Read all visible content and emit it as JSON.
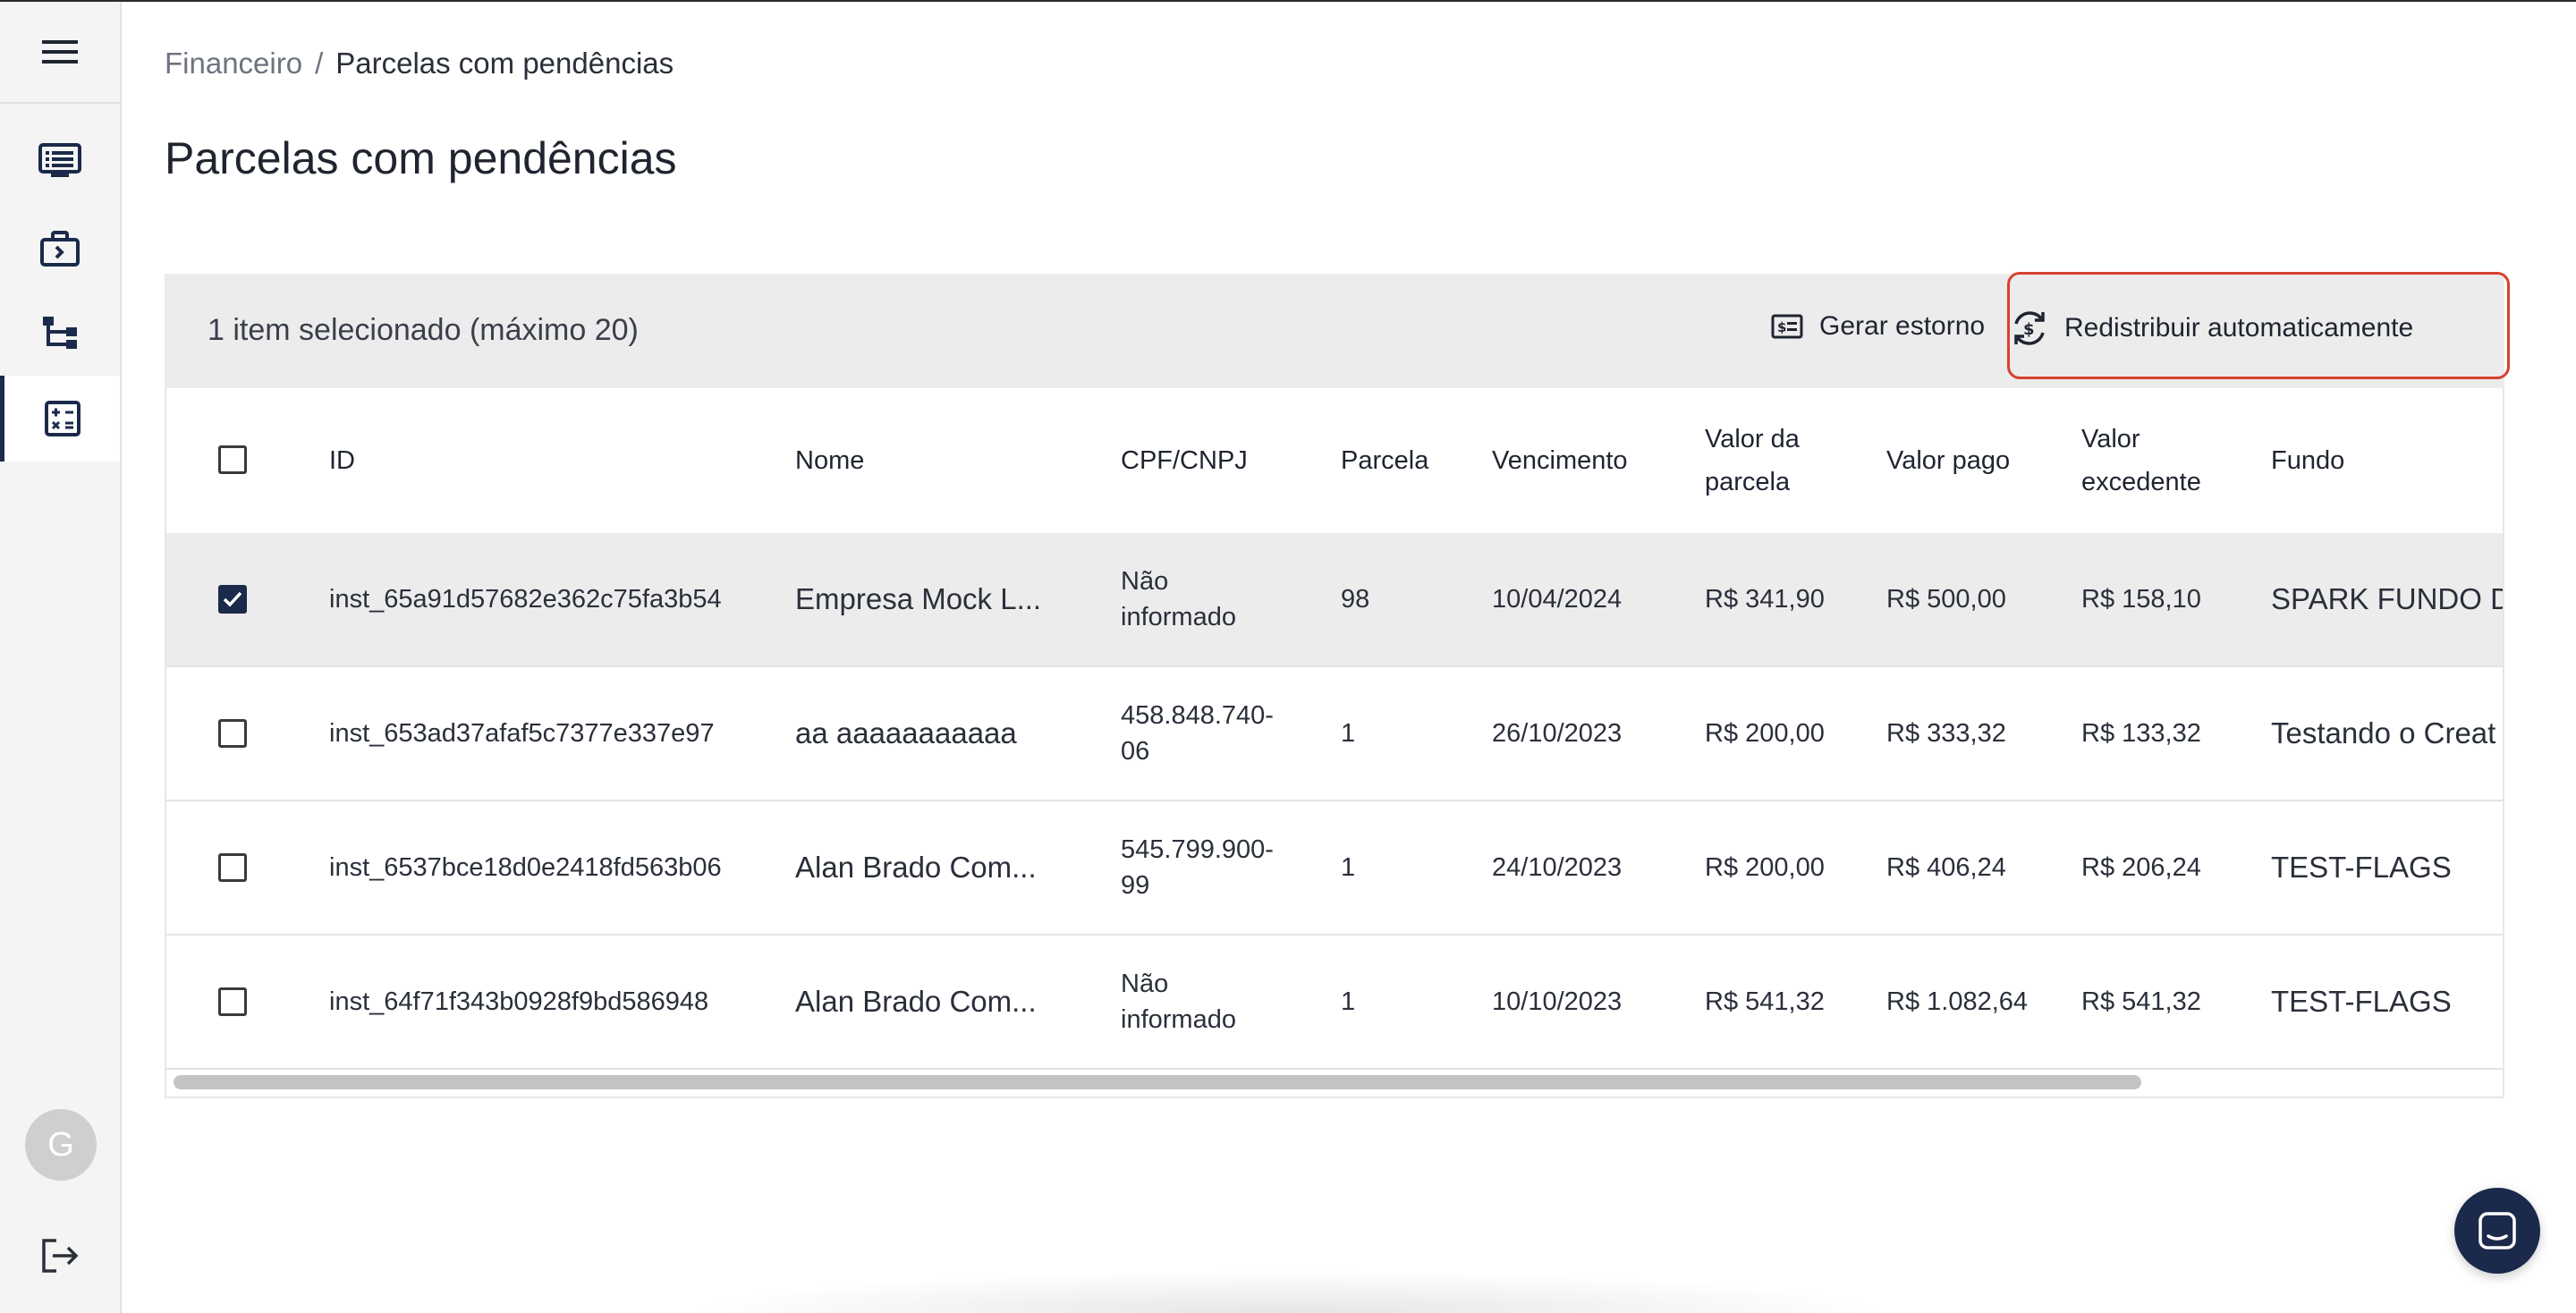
{
  "breadcrumb": {
    "parent": "Financeiro",
    "separator": "/",
    "current": "Parcelas com pendências"
  },
  "page": {
    "title": "Parcelas com pendências"
  },
  "sidebar": {
    "avatar_initial": "G",
    "items": [
      {
        "icon": "list-card-icon"
      },
      {
        "icon": "briefcase-icon"
      },
      {
        "icon": "hierarchy-icon"
      },
      {
        "icon": "calculator-icon",
        "active": true
      }
    ]
  },
  "toolbar": {
    "selection_text": "1 item selecionado (máximo 20)",
    "refund_label": "Gerar estorno",
    "redistribute_label": "Redistribuir automaticamente"
  },
  "table": {
    "headers": {
      "id": "ID",
      "nome": "Nome",
      "cpf": "CPF/CNPJ",
      "parcela": "Parcela",
      "vencimento": "Vencimento",
      "valor_parcela_1": "Valor da",
      "valor_parcela_2": "parcela",
      "valor_pago": "Valor pago",
      "valor_excedente_1": "Valor",
      "valor_excedente_2": "excedente",
      "fundo": "Fundo"
    },
    "rows": [
      {
        "checked": true,
        "id": "inst_65a91d57682e362c75fa3b54",
        "nome": "Empresa Mock L...",
        "cpf_1": "Não",
        "cpf_2": "informado",
        "parcela": "98",
        "vencimento": "10/04/2024",
        "valor_parcela": "R$ 341,90",
        "valor_pago": "R$ 500,00",
        "valor_excedente": "R$ 158,10",
        "fundo": "SPARK FUNDO D"
      },
      {
        "checked": false,
        "id": "inst_653ad37afaf5c7377e337e97",
        "nome": "aa aaaaaaaaaaa",
        "cpf_1": "458.848.740-",
        "cpf_2": "06",
        "parcela": "1",
        "vencimento": "26/10/2023",
        "valor_parcela": "R$ 200,00",
        "valor_pago": "R$ 333,32",
        "valor_excedente": "R$ 133,32",
        "fundo": "Testando o Creat"
      },
      {
        "checked": false,
        "id": "inst_6537bce18d0e2418fd563b06",
        "nome": "Alan Brado Com...",
        "cpf_1": "545.799.900-",
        "cpf_2": "99",
        "parcela": "1",
        "vencimento": "24/10/2023",
        "valor_parcela": "R$ 200,00",
        "valor_pago": "R$ 406,24",
        "valor_excedente": "R$ 206,24",
        "fundo": "TEST-FLAGS"
      },
      {
        "checked": false,
        "id": "inst_64f71f343b0928f9bd586948",
        "nome": "Alan Brado Com...",
        "cpf_1": "Não",
        "cpf_2": "informado",
        "parcela": "1",
        "vencimento": "10/10/2023",
        "valor_parcela": "R$ 541,32",
        "valor_pago": "R$ 1.082,64",
        "valor_excedente": "R$ 541,32",
        "fundo": "TEST-FLAGS"
      }
    ]
  },
  "colors": {
    "primary": "#1b2a4a",
    "highlight": "#d8412f",
    "toolbar_bg": "#ececec"
  }
}
